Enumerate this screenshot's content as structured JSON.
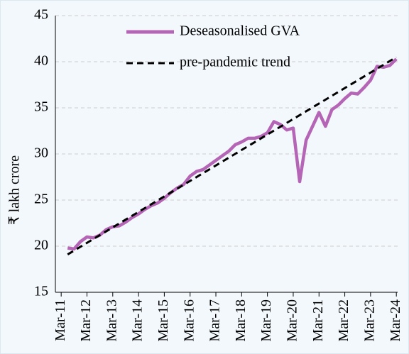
{
  "chart_data": {
    "type": "line",
    "ylabel": "₹ lakh crore",
    "x": [
      1,
      2,
      3,
      4,
      5,
      6,
      7,
      8,
      9,
      10,
      11,
      12,
      13,
      14,
      15,
      16,
      17,
      18,
      19,
      20,
      21,
      22,
      23,
      24,
      25,
      26,
      27,
      28,
      29,
      30,
      31,
      32,
      33,
      34,
      35,
      36,
      37,
      38,
      39,
      40,
      41,
      42,
      43,
      44,
      45,
      46,
      47,
      48,
      49,
      50,
      51,
      52
    ],
    "series": [
      {
        "name": "Deseasonalised GVA",
        "color": "#b565b5",
        "style": "solid",
        "values": [
          19.8,
          19.7,
          20.5,
          21.0,
          20.9,
          21.2,
          21.8,
          22.1,
          22.2,
          22.6,
          23.1,
          23.5,
          24.0,
          24.4,
          24.7,
          25.2,
          25.8,
          26.3,
          26.7,
          27.6,
          28.1,
          28.3,
          28.8,
          29.3,
          29.8,
          30.3,
          31.0,
          31.3,
          31.7,
          31.7,
          31.9,
          32.3,
          33.5,
          33.2,
          32.6,
          32.8,
          27.0,
          31.5,
          33.0,
          34.5,
          33.0,
          34.8,
          35.3,
          36.0,
          36.6,
          36.5,
          37.2,
          38.0,
          39.5,
          39.4,
          39.6,
          40.3
        ]
      },
      {
        "name": "pre-pandemic trend",
        "color": "#000000",
        "style": "dashed",
        "x": [
          1,
          52
        ],
        "values": [
          19.1,
          40.5
        ]
      }
    ],
    "xlim": [
      -0.9,
      52.2
    ],
    "xticks": [
      {
        "value": 0,
        "label": "Mar-11"
      },
      {
        "value": 4,
        "label": "Mar-12"
      },
      {
        "value": 8,
        "label": "Mar-13"
      },
      {
        "value": 12,
        "label": "Mar-14"
      },
      {
        "value": 16,
        "label": "Mar-15"
      },
      {
        "value": 20,
        "label": "Mar-16"
      },
      {
        "value": 24,
        "label": "Mar-17"
      },
      {
        "value": 28,
        "label": "Mar-18"
      },
      {
        "value": 32,
        "label": "Mar-19"
      },
      {
        "value": 36,
        "label": "Mar-20"
      },
      {
        "value": 40,
        "label": "Mar-21"
      },
      {
        "value": 44,
        "label": "Mar-22"
      },
      {
        "value": 48,
        "label": "Mar-23"
      },
      {
        "value": 52,
        "label": "Mar-24"
      }
    ],
    "ylim": [
      15,
      45
    ],
    "yticks": [
      15,
      20,
      25,
      30,
      35,
      40,
      45
    ],
    "grid": true,
    "legend": "top"
  }
}
